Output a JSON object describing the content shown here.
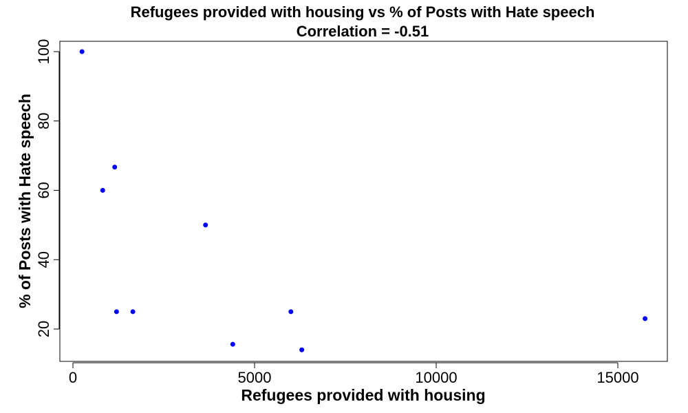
{
  "chart_data": {
    "type": "scatter",
    "title": "Refugees provided with housing vs % of Posts with Hate speech",
    "subtitle": "Correlation =  -0.51",
    "xlabel": "Refugees provided with housing",
    "ylabel": "% of Posts with Hate speech",
    "xlim": [
      0,
      16500
    ],
    "ylim": [
      12,
      103
    ],
    "xticks": [
      0,
      5000,
      10000,
      15000
    ],
    "yticks": [
      20,
      40,
      60,
      80,
      100
    ],
    "xtick_labels": [
      "0",
      "5000",
      "10000",
      "15000"
    ],
    "ytick_labels": [
      "20",
      "40",
      "60",
      "80",
      "100"
    ],
    "grid": false,
    "legend": "none",
    "point_color": "#0000ff",
    "points": [
      {
        "x": 250,
        "y": 100
      },
      {
        "x": 820,
        "y": 60
      },
      {
        "x": 1150,
        "y": 66.7
      },
      {
        "x": 1200,
        "y": 25
      },
      {
        "x": 1650,
        "y": 25
      },
      {
        "x": 3650,
        "y": 50
      },
      {
        "x": 4400,
        "y": 15.6
      },
      {
        "x": 6000,
        "y": 25
      },
      {
        "x": 6300,
        "y": 14
      },
      {
        "x": 15750,
        "y": 23
      }
    ]
  }
}
